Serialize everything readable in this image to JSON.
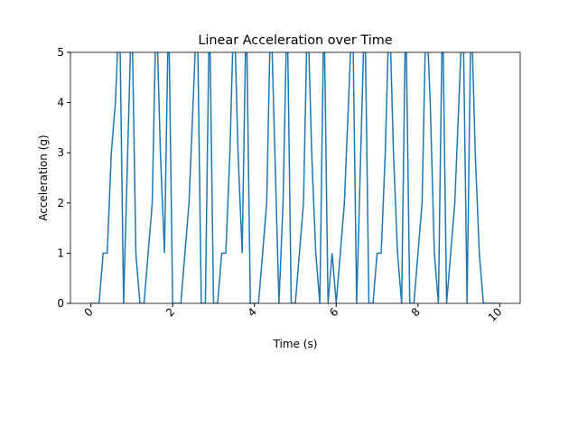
{
  "chart_data": {
    "type": "line",
    "title": "Linear Acceleration over Time",
    "xlabel": "Time (s)",
    "ylabel": "Acceleration (g)",
    "x": [
      0,
      0.1,
      0.2,
      0.3,
      0.4,
      0.5,
      0.6,
      0.7,
      0.8,
      0.9,
      1,
      1.1,
      1.2,
      1.3,
      1.4,
      1.5,
      1.6,
      1.7,
      1.8,
      1.9,
      2,
      2.1,
      2.2,
      2.3,
      2.4,
      2.5,
      2.6,
      2.7,
      2.8,
      2.9,
      3,
      3.1,
      3.2,
      3.3,
      3.4,
      3.5,
      3.6,
      3.7,
      3.8,
      3.9,
      4,
      4.1,
      4.2,
      4.3,
      4.4,
      4.5,
      4.6,
      4.7,
      4.8,
      4.9,
      5,
      5.1,
      5.2,
      5.3,
      5.4,
      5.5,
      5.6,
      5.7,
      5.8,
      5.9,
      6,
      6.1,
      6.2,
      6.3,
      6.4,
      6.5,
      6.6,
      6.7,
      6.8,
      6.9,
      7,
      7.1,
      7.2,
      7.3,
      7.4,
      7.5,
      7.6,
      7.7,
      7.8,
      7.9,
      8,
      8.1,
      8.2,
      8.3,
      8.4,
      8.5,
      8.6,
      8.7,
      8.8,
      8.9,
      9,
      9.1,
      9.2,
      9.3,
      9.4,
      9.5,
      9.6,
      9.7,
      9.8,
      9.9,
      10
    ],
    "values": [
      0,
      0,
      0,
      1,
      1,
      3,
      4,
      6,
      0,
      3,
      6,
      1,
      0,
      0,
      1,
      2,
      6,
      3,
      1,
      6,
      0,
      0,
      0,
      1,
      2,
      4,
      6,
      0,
      0,
      6,
      0,
      0,
      1,
      1,
      3,
      6,
      3,
      1,
      6,
      0,
      0,
      0,
      1,
      2,
      6,
      3,
      0,
      2,
      6,
      0,
      0,
      1,
      2,
      6,
      3,
      1,
      0,
      6,
      0,
      1,
      0,
      1,
      2,
      4,
      6,
      0,
      3,
      6,
      0,
      0,
      1,
      1,
      3,
      6,
      3,
      1,
      0,
      6,
      0,
      0,
      1,
      2,
      6,
      4,
      1,
      0,
      6,
      0,
      1,
      2,
      4,
      6,
      0,
      6,
      3,
      1,
      0,
      0,
      0,
      0,
      0
    ],
    "color": "#1f77b4",
    "xlim": [
      -0.5,
      10.5
    ],
    "xticks": [
      0,
      2,
      4,
      6,
      8,
      10
    ],
    "ylim": [
      0,
      5
    ],
    "yticks": [
      0,
      1,
      2,
      3,
      4,
      5
    ]
  }
}
